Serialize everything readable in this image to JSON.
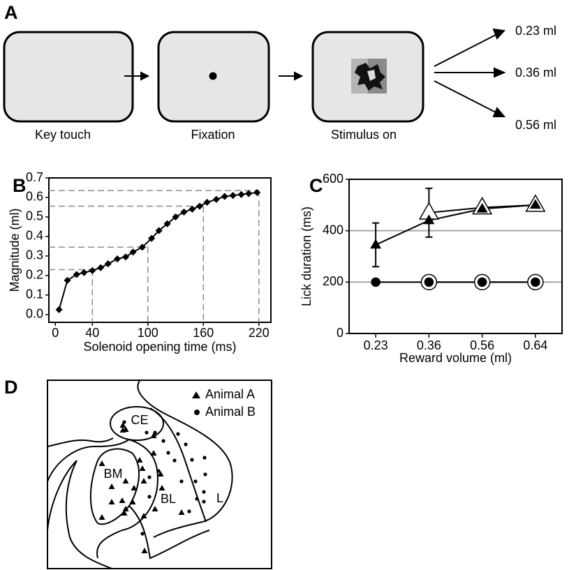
{
  "panel_a": {
    "label": "A",
    "steps": [
      "Key touch",
      "Fixation",
      "Stimulus on"
    ],
    "outcomes": [
      "0.23 ml",
      "0.36 ml",
      "0.56 ml"
    ]
  },
  "chart_data": [
    {
      "type": "line",
      "panel_label": "B",
      "x_label": "Solenoid opening time (ms)",
      "y_label": "Magnitude (ml)",
      "x": [
        4,
        13,
        23,
        31,
        40,
        49,
        57,
        67,
        76,
        84,
        94,
        104,
        112,
        121,
        130,
        139,
        148,
        156,
        164,
        174,
        183,
        192,
        201,
        209,
        218
      ],
      "values": [
        0.025,
        0.175,
        0.205,
        0.215,
        0.225,
        0.24,
        0.26,
        0.285,
        0.295,
        0.32,
        0.345,
        0.39,
        0.43,
        0.465,
        0.5,
        0.525,
        0.54,
        0.555,
        0.575,
        0.59,
        0.605,
        0.61,
        0.615,
        0.62,
        0.625
      ],
      "color": "#000000",
      "marker": "diamond",
      "marker_size": 4,
      "xlim": [
        -7,
        233
      ],
      "ylim": [
        -0.04,
        0.7
      ],
      "xticks": [
        0,
        40,
        100,
        160,
        220
      ],
      "yticks": [
        {
          "value": 0,
          "label": "0.0"
        },
        0.1,
        0.2,
        0.3,
        0.4,
        0.5,
        0.6,
        0.7
      ],
      "reference_lines": [
        {
          "x": 40,
          "y": 0.23
        },
        {
          "x": 100,
          "y": 0.345
        },
        {
          "x": 160,
          "y": 0.555
        },
        {
          "x": 220,
          "y": 0.635
        }
      ],
      "reference_color": "#8c8c8c"
    },
    {
      "type": "line",
      "panel_label": "C",
      "x_label": "Reward volume (ml)",
      "y_label": "Lick duration (ms)",
      "categories": [
        "0.23",
        "0.36",
        "0.56",
        "0.64"
      ],
      "series": [
        {
          "color": "#000000",
          "marker": "triangle",
          "marker_fill": "#000000",
          "marker_size": 7,
          "values": [
            345,
            440,
            485,
            500
          ],
          "errors": [
            85,
            null,
            null,
            null
          ]
        },
        {
          "color": "#000000",
          "marker": "triangle",
          "marker_fill": "#ffffff",
          "marker_size": 14,
          "values": [
            null,
            470,
            490,
            500
          ],
          "errors": [
            null,
            95,
            null,
            null
          ]
        },
        {
          "color": "#000000",
          "marker": "circle",
          "marker_fill": "#000000",
          "marker_size": 6,
          "values": [
            200,
            200,
            200,
            200
          ]
        },
        {
          "color": "#000000",
          "marker": "circle",
          "marker_fill": "#ffffff",
          "marker_size": 11,
          "values": [
            null,
            200,
            200,
            200
          ]
        }
      ],
      "ylim": [
        0,
        600
      ],
      "yticks": [
        0,
        200,
        400,
        600
      ],
      "grid": true,
      "grid_color": "#a6a6a6"
    }
  ],
  "panel_d": {
    "label": "D",
    "legend": [
      "Animal A",
      "Animal B"
    ],
    "regions": [
      "CE",
      "BM",
      "BL",
      "L"
    ]
  }
}
